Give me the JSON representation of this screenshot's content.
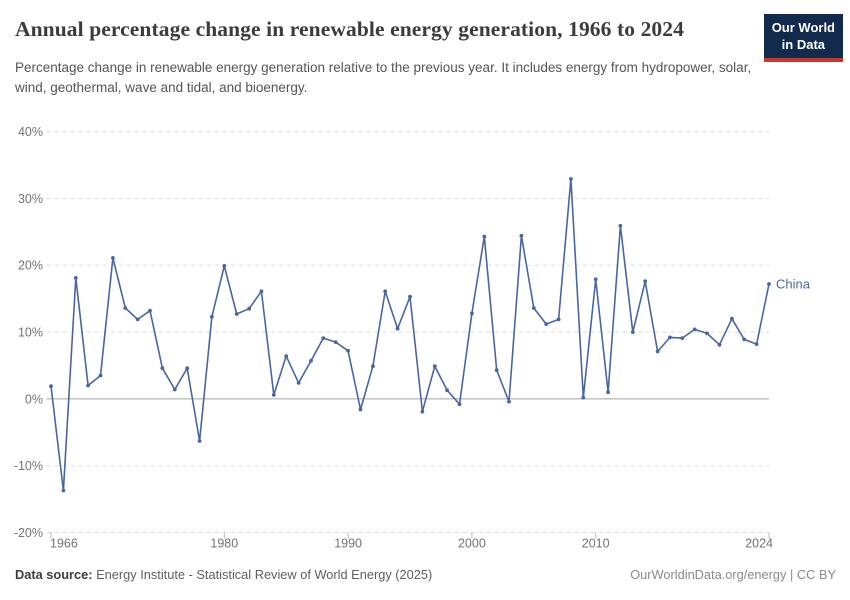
{
  "branding": {
    "logo_line1": "Our World",
    "logo_line2": "in Data"
  },
  "chart_data": {
    "type": "line",
    "title": "Annual percentage change in renewable energy generation, 1966 to 2024",
    "subtitle": "Percentage change in renewable energy generation relative to the previous year. It includes energy from hydropower, solar, wind, geothermal, wave and tidal, and bioenergy.",
    "xlabel": "",
    "ylabel": "",
    "xlim": [
      1966,
      2024
    ],
    "ylim": [
      -20,
      40
    ],
    "x_ticks": [
      1966,
      1980,
      1990,
      2000,
      2010,
      2024
    ],
    "y_ticks": [
      40,
      30,
      20,
      10,
      0,
      -10,
      -20
    ],
    "y_tick_suffix": "%",
    "grid": "horizontal-dashed",
    "zero_line": true,
    "legend_position": "end-of-line",
    "x": [
      1966,
      1967,
      1968,
      1969,
      1970,
      1971,
      1972,
      1973,
      1974,
      1975,
      1976,
      1977,
      1978,
      1979,
      1980,
      1981,
      1982,
      1983,
      1984,
      1985,
      1986,
      1987,
      1988,
      1989,
      1990,
      1991,
      1992,
      1993,
      1994,
      1995,
      1996,
      1997,
      1998,
      1999,
      2000,
      2001,
      2002,
      2003,
      2004,
      2005,
      2006,
      2007,
      2008,
      2009,
      2010,
      2011,
      2012,
      2013,
      2014,
      2015,
      2016,
      2017,
      2018,
      2019,
      2020,
      2021,
      2022,
      2023,
      2024
    ],
    "series": [
      {
        "name": "China",
        "color": "#4a66a0",
        "values": [
          1.9,
          -13.7,
          18.1,
          2.0,
          3.5,
          21.1,
          13.6,
          11.9,
          13.2,
          4.6,
          1.4,
          4.6,
          -6.3,
          12.3,
          19.9,
          12.7,
          13.5,
          16.1,
          0.6,
          6.4,
          2.4,
          5.7,
          9.1,
          8.5,
          7.2,
          -1.6,
          4.9,
          16.1,
          10.5,
          15.3,
          -1.9,
          4.9,
          1.3,
          -0.8,
          12.8,
          24.3,
          4.3,
          -0.4,
          24.4,
          13.6,
          11.2,
          11.9,
          32.9,
          0.2,
          17.9,
          1.0,
          25.9,
          10.0,
          17.6,
          7.1,
          9.2,
          9.1,
          10.4,
          9.8,
          8.1,
          12.0,
          8.9,
          8.2,
          17.2
        ]
      }
    ]
  },
  "footer": {
    "source_label": "Data source:",
    "source_text": "Energy Institute - Statistical Review of World Energy (2025)",
    "credit": "OurWorldinData.org/energy | CC BY"
  },
  "colors": {
    "line": "#4a66a0",
    "grid": "#dddddd",
    "zero_line": "#a5a5a5",
    "axis_tick": "#b8b8b8",
    "tick_text": "#737373",
    "title": "#3c3c3c",
    "subtitle": "#555555",
    "logo_bg": "#122a4c",
    "logo_accent": "#c7372b"
  }
}
